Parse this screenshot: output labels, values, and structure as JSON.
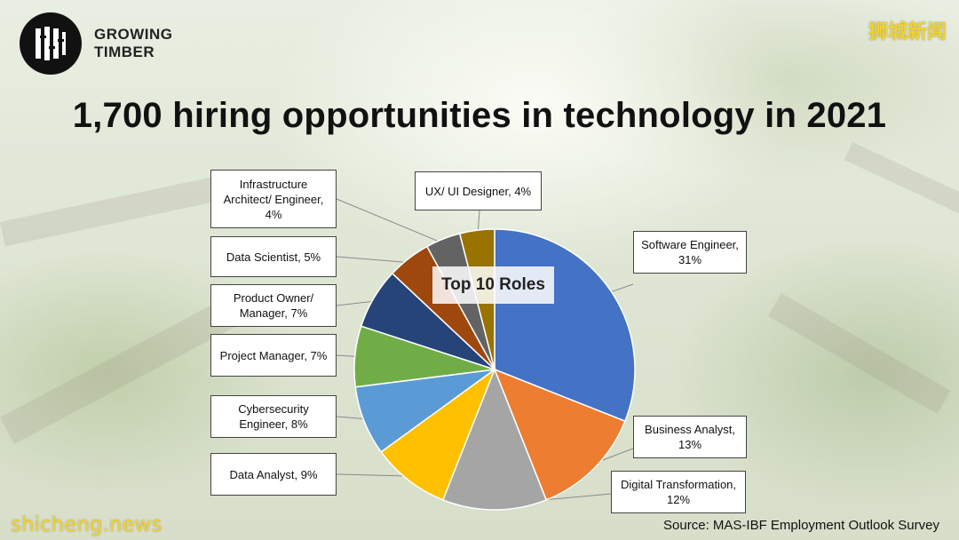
{
  "brand": {
    "line1": "GROWING",
    "line2": "TIMBER"
  },
  "watermark_cn": "狮城新闻",
  "watermark_en": "shicheng.news",
  "title": "1,700 hiring opportunities in technology in 2021",
  "source": "Source: MAS-IBF Employment Outlook Survey",
  "chart_data": {
    "type": "pie",
    "title": "Top 10 Roles",
    "slices": [
      {
        "label": "Software Engineer, 31%",
        "value": 31,
        "color": "#4472c4"
      },
      {
        "label": "Business Analyst, 13%",
        "value": 13,
        "color": "#ed7d31"
      },
      {
        "label": "Digital Transformation, 12%",
        "value": 12,
        "color": "#a5a5a5"
      },
      {
        "label": "Data Analyst, 9%",
        "value": 9,
        "color": "#ffc000"
      },
      {
        "label": "Cybersecurity Engineer, 8%",
        "value": 8,
        "color": "#5b9bd5"
      },
      {
        "label": "Project Manager, 7%",
        "value": 7,
        "color": "#70ad47"
      },
      {
        "label": "Product Owner/ Manager, 7%",
        "value": 7,
        "color": "#264478"
      },
      {
        "label": "Data Scientist, 5%",
        "value": 5,
        "color": "#9e480e"
      },
      {
        "label": "Infrastructure Architect/ Engineer, 4%",
        "value": 4,
        "color": "#636363"
      },
      {
        "label": "UX/ UI Designer, 4%",
        "value": 4,
        "color": "#997300"
      }
    ]
  },
  "labels": {
    "software": "Software Engineer, 31%",
    "business": "Business Analyst, 13%",
    "digital": "Digital Transformation, 12%",
    "data_analyst": "Data Analyst, 9%",
    "cyber": "Cybersecurity Engineer, 8%",
    "project": "Project Manager, 7%",
    "product": "Product Owner/ Manager, 7%",
    "data_scientist": "Data Scientist, 5%",
    "infra": "Infrastructure Architect/ Engineer, 4%",
    "ux": "UX/ UI Designer, 4%"
  }
}
